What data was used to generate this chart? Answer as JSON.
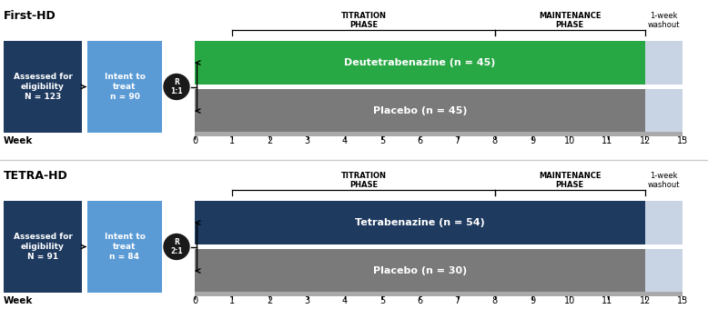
{
  "panels": [
    {
      "title": "First-HD",
      "assessed_label": "Assessed for\neligibility\nN = 123",
      "intent_label": "Intent to\ntreat\nn = 90",
      "randomize_label": "R\n1:1",
      "drug_label": "Deutetrabenazine (n = 45)",
      "placebo_label": "Placebo (n = 45)",
      "drug_color": "#28a745",
      "drug_text_color": "#ffffff",
      "placebo_color": "#7a7a7a",
      "placebo_text_color": "#ffffff"
    },
    {
      "title": "TETRA-HD",
      "assessed_label": "Assessed for\neligibility\nN = 91",
      "intent_label": "Intent to\ntreat\nn = 84",
      "randomize_label": "R\n2:1",
      "drug_label": "Tetrabenazine (n = 54)",
      "placebo_label": "Placebo (n = 30)",
      "drug_color": "#1e3a5f",
      "drug_text_color": "#ffffff",
      "placebo_color": "#7a7a7a",
      "placebo_text_color": "#ffffff"
    }
  ],
  "assessed_box_color": "#1e3a5f",
  "intent_box_color": "#5b9bd5",
  "randomize_circle_color": "#1a1a1a",
  "washout_color": "#c8d4e3",
  "week_ticks": [
    0,
    1,
    2,
    3,
    4,
    5,
    6,
    7,
    8,
    9,
    10,
    11,
    12,
    13
  ],
  "titration_label": "TITRATION\nPHASE",
  "maintenance_label": "MAINTENANCE\nPHASE",
  "washout_label": "1-week\nwashout",
  "week_label": "Week",
  "background_color": "#ffffff",
  "separator_color": "#cccccc",
  "timeline_bar_color": "#aaaaaa"
}
